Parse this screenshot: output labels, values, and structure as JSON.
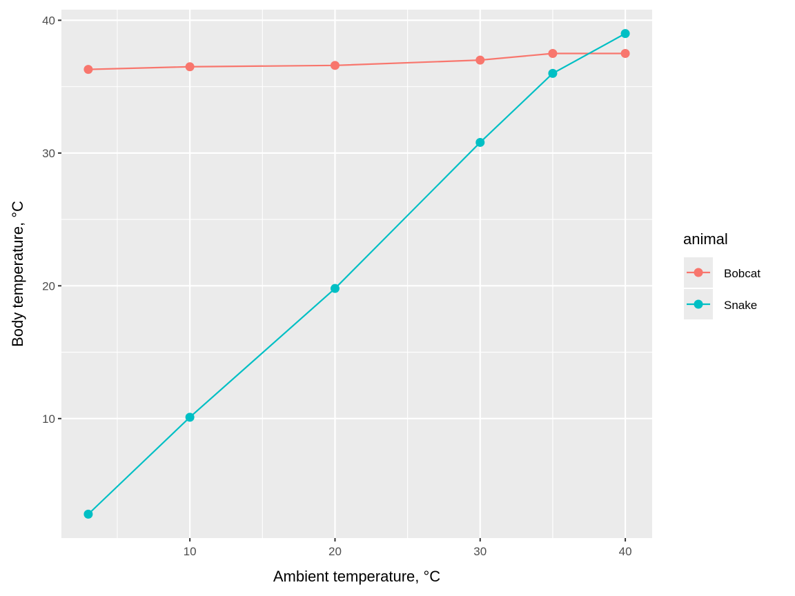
{
  "chart_data": {
    "type": "line",
    "title": "",
    "xlabel": "Ambient temperature, °C",
    "ylabel": "Body temperature, °C",
    "xlim": [
      1.15,
      41.85
    ],
    "ylim": [
      1.0,
      40.8
    ],
    "x_ticks": [
      10,
      20,
      30,
      40
    ],
    "y_ticks": [
      10,
      20,
      30,
      40
    ],
    "x_minor_ticks": [
      5,
      15,
      25,
      35
    ],
    "y_minor_ticks": [
      15,
      25,
      35
    ],
    "grid": true,
    "markers": true,
    "legend": {
      "title": "animal",
      "position": "right"
    },
    "series": [
      {
        "name": "Bobcat",
        "color": "#F8766D",
        "x": [
          3,
          10,
          20,
          30,
          35,
          40
        ],
        "y": [
          36.3,
          36.5,
          36.6,
          37.0,
          37.5,
          37.5
        ]
      },
      {
        "name": "Snake",
        "color": "#00BFC4",
        "x": [
          3,
          10,
          20,
          30,
          35,
          40
        ],
        "y": [
          2.8,
          10.1,
          19.8,
          30.8,
          36.0,
          39.0
        ]
      }
    ]
  }
}
